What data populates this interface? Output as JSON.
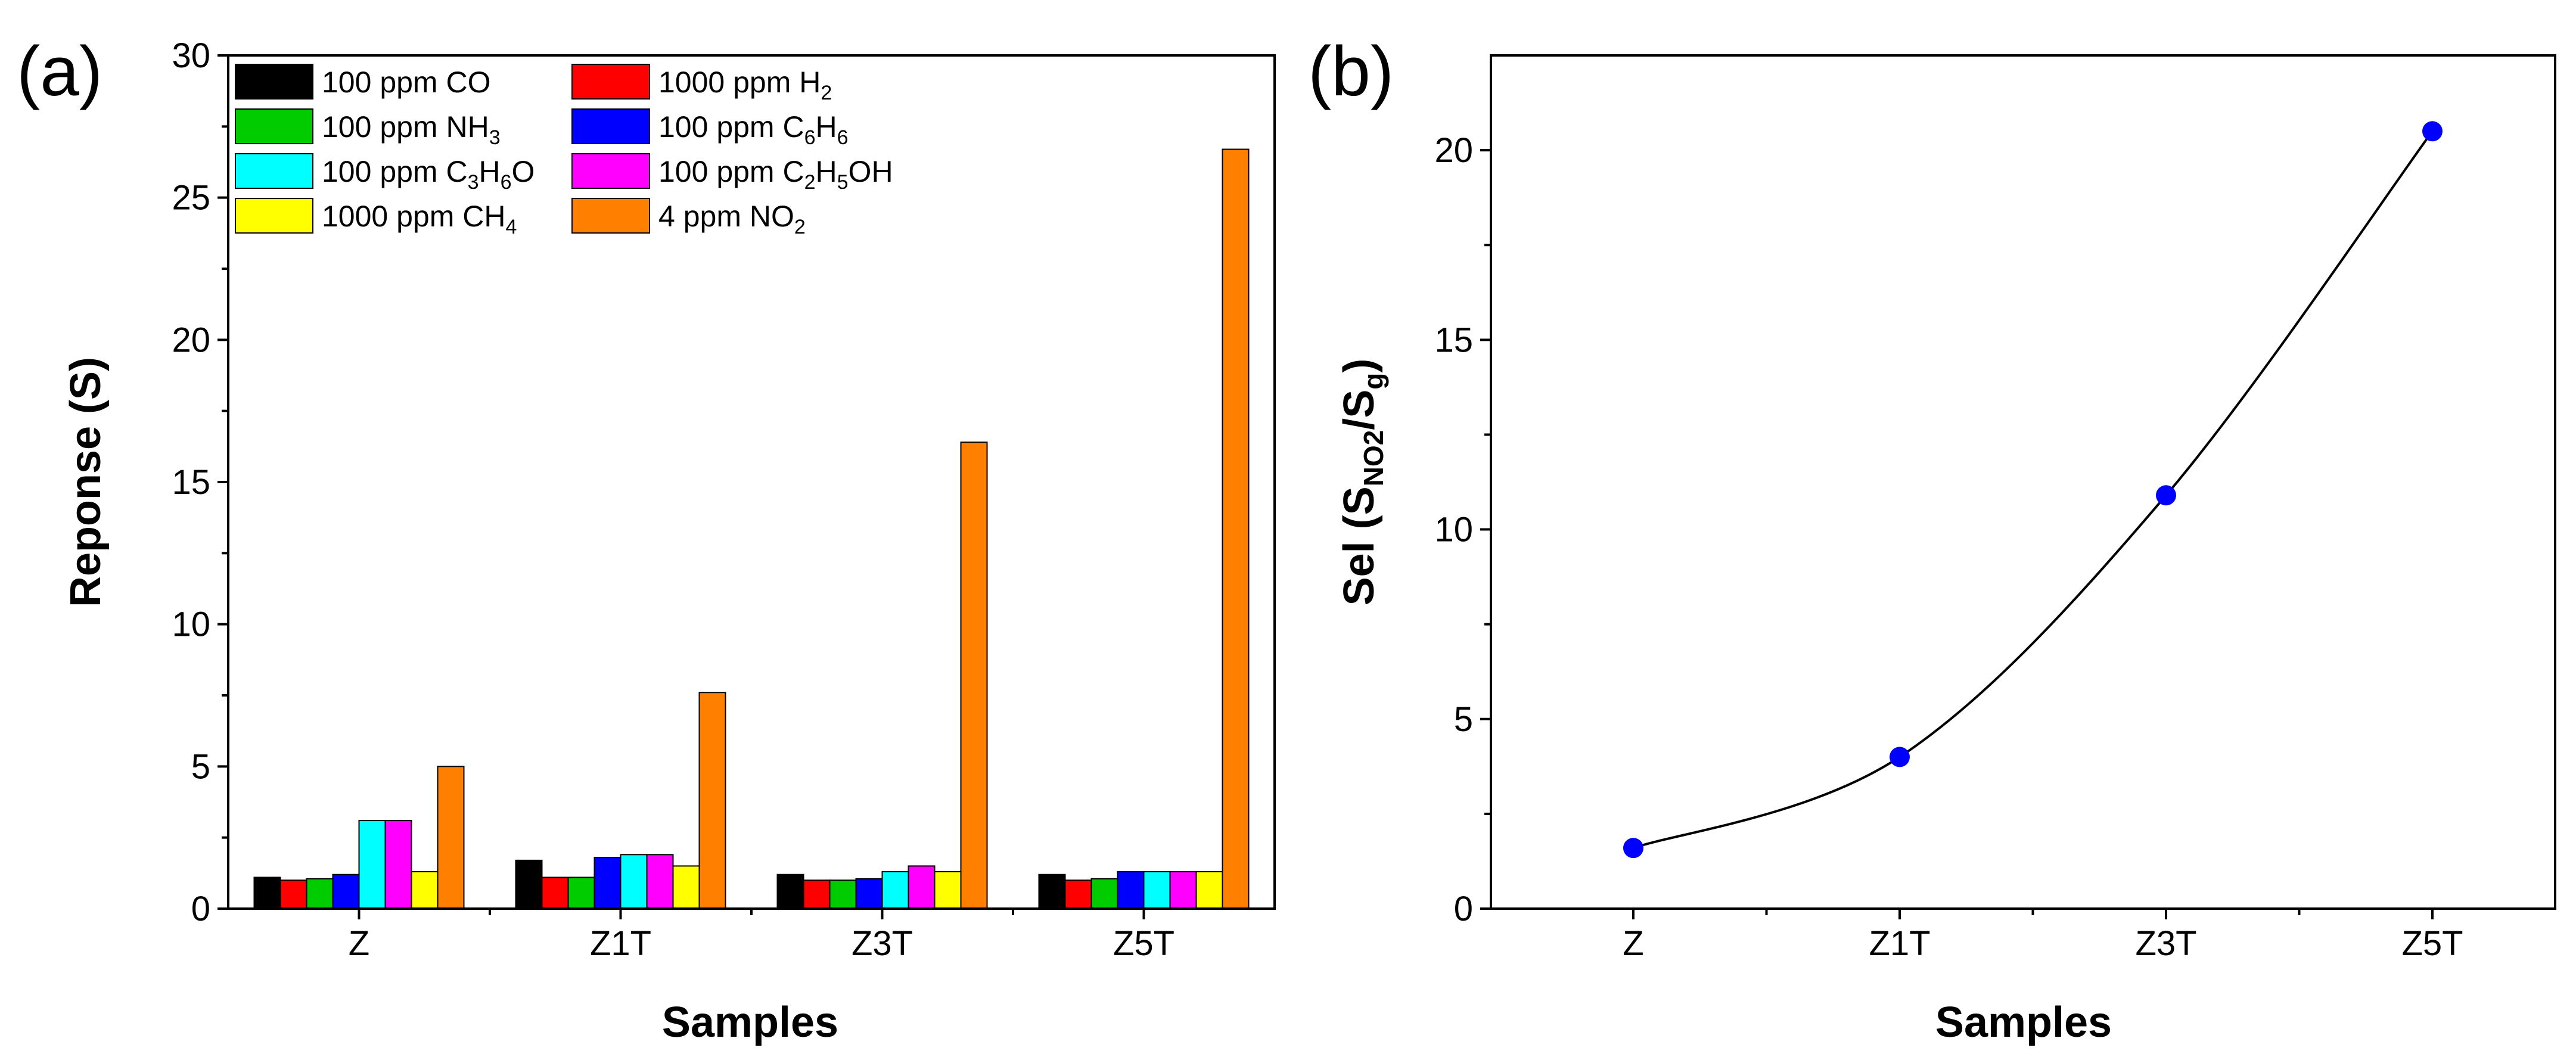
{
  "chart_data": [
    {
      "panel_label": "(a)",
      "type": "bar",
      "title": "",
      "xlabel": "Samples",
      "ylabel": "Reponse (S)",
      "ylim": [
        0,
        30
      ],
      "yticks": [
        0,
        5,
        10,
        15,
        20,
        25,
        30
      ],
      "grid": false,
      "legend_position": "top-left",
      "categories": [
        "Z",
        "Z1T",
        "Z3T",
        "Z5T"
      ],
      "series": [
        {
          "name": "100 ppm CO",
          "label": {
            "pre": "100 ppm CO",
            "parts": []
          },
          "color": "#000000",
          "values": [
            1.1,
            1.7,
            1.2,
            1.2
          ]
        },
        {
          "name": "1000 ppm H2",
          "label": {
            "pre": "1000 ppm H",
            "parts": [
              {
                "sub": "2",
                "after": ""
              }
            ]
          },
          "color": "#ff0000",
          "values": [
            1.0,
            1.1,
            1.0,
            1.0
          ]
        },
        {
          "name": "100 ppm NH3",
          "label": {
            "pre": "100 ppm NH",
            "parts": [
              {
                "sub": "3",
                "after": ""
              }
            ]
          },
          "color": "#00cc00",
          "values": [
            1.05,
            1.1,
            1.0,
            1.05
          ]
        },
        {
          "name": "100 ppm C6H6",
          "label": {
            "pre": "100 ppm C",
            "parts": [
              {
                "sub": "6",
                "after": "H"
              },
              {
                "sub": "6",
                "after": ""
              }
            ]
          },
          "color": "#0000ff",
          "values": [
            1.2,
            1.8,
            1.05,
            1.3
          ]
        },
        {
          "name": "100 ppm C3H6O",
          "label": {
            "pre": "100 ppm C",
            "parts": [
              {
                "sub": "3",
                "after": "H"
              },
              {
                "sub": "6",
                "after": "O"
              }
            ]
          },
          "color": "#00ffff",
          "values": [
            3.1,
            1.9,
            1.3,
            1.3
          ]
        },
        {
          "name": "100 ppm C2H5OH",
          "label": {
            "pre": "100 ppm C",
            "parts": [
              {
                "sub": "2",
                "after": "H"
              },
              {
                "sub": "5",
                "after": "OH"
              }
            ]
          },
          "color": "#ff00ff",
          "values": [
            3.1,
            1.9,
            1.5,
            1.3
          ]
        },
        {
          "name": "1000 ppm CH4",
          "label": {
            "pre": "1000 ppm CH",
            "parts": [
              {
                "sub": "4",
                "after": ""
              }
            ]
          },
          "color": "#ffff00",
          "values": [
            1.3,
            1.5,
            1.3,
            1.3
          ]
        },
        {
          "name": "4 ppm NO2",
          "label": {
            "pre": "4 ppm NO",
            "parts": [
              {
                "sub": "2",
                "after": ""
              }
            ]
          },
          "color": "#ff8000",
          "values": [
            5.0,
            7.6,
            16.4,
            26.7
          ]
        }
      ]
    },
    {
      "panel_label": "(b)",
      "type": "line",
      "title": "",
      "xlabel": "Samples",
      "ylabel": "Sel (SNO2/Sg)",
      "ylabel_parts": {
        "a": "Sel (S",
        "sub1": "NO2",
        "b": "/S",
        "sub2": "g",
        "c": ")"
      },
      "ylim": [
        0,
        22.5
      ],
      "yticks": [
        0,
        5,
        10,
        15,
        20
      ],
      "grid": false,
      "categories": [
        "Z",
        "Z1T",
        "Z3T",
        "Z5T"
      ],
      "marker_color": "#0000ff",
      "line_color": "#000000",
      "values": [
        1.6,
        4.0,
        10.9,
        20.5
      ]
    }
  ]
}
